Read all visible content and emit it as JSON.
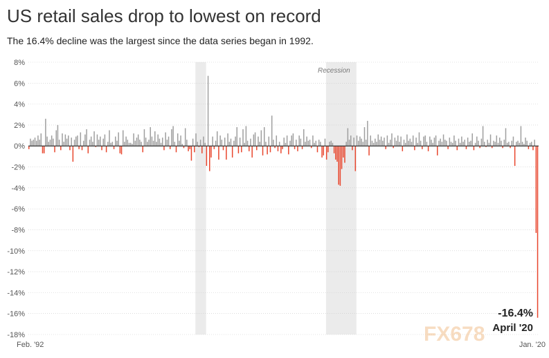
{
  "title": "US retail sales drop to lowest on record",
  "subtitle": "The 16.4% decline was the largest since the data series began in 1992.",
  "watermark": "FX678",
  "colors": {
    "positive": "#9e9e9e",
    "negative": "#e8452c",
    "recession": "#ebebeb",
    "axis": "#333333"
  },
  "chart_data": {
    "type": "bar",
    "title": "US retail sales drop to lowest on record",
    "subtitle": "The 16.4% decline was the largest since the data series began in 1992.",
    "xlabel": "",
    "ylabel": "",
    "ylim": [
      -18,
      8
    ],
    "yticks": [
      8,
      6,
      4,
      2,
      0,
      -2,
      -4,
      -6,
      -8,
      -10,
      -12,
      -14,
      -16,
      -18
    ],
    "ytick_labels": [
      "8%",
      "6%",
      "4%",
      "2%",
      "0%",
      "-2%",
      "-4%",
      "-6%",
      "-8%",
      "-10%",
      "-12%",
      "-14%",
      "-16%",
      "-18%"
    ],
    "x_start_label": "Feb. '92",
    "x_end_label": "Jan. '20",
    "recession_label": "Recession",
    "recessions": [
      [
        110,
        117
      ],
      [
        196,
        216
      ]
    ],
    "annotation": {
      "value": "-16.4%",
      "date": "April '20"
    },
    "grid": true,
    "values": [
      -0.3,
      0.7,
      0.5,
      0.6,
      0.8,
      0.5,
      1.0,
      0.6,
      1.2,
      -0.7,
      -0.7,
      2.6,
      0.9,
      0.4,
      0.6,
      1.0,
      0.7,
      -0.6,
      1.5,
      2.0,
      0.6,
      -0.4,
      1.2,
      0.4,
      1.1,
      0.7,
      1.0,
      -0.4,
      0.8,
      -1.5,
      0.6,
      0.9,
      1.0,
      -0.3,
      1.3,
      -0.4,
      0.5,
      1.1,
      1.6,
      -0.7,
      0.6,
      0.9,
      0.4,
      1.4,
      -0.1,
      1.1,
      0.6,
      0.9,
      -0.4,
      0.7,
      1.1,
      -0.6,
      0.4,
      1.5,
      0.3,
      0.4,
      -0.3,
      0.9,
      0.5,
      1.3,
      -0.7,
      -0.8,
      1.5,
      0.4,
      0.9,
      0.6,
      0.3,
      0.3,
      0.2,
      1.2,
      0.5,
      0.8,
      1.1,
      0.6,
      0.4,
      -0.6,
      1.6,
      0.8,
      0.4,
      0.6,
      1.8,
      0.9,
      0.5,
      1.4,
      0.4,
      1.1,
      0.7,
      0.3,
      0.8,
      -0.4,
      1.3,
      0.6,
      0.9,
      -0.3,
      1.6,
      1.9,
      0.4,
      -0.6,
      1.2,
      0.5,
      1.0,
      0.2,
      -0.2,
      1.7,
      0.6,
      -0.5,
      -0.3,
      -1.4,
      0.7,
      -0.6,
      1.2,
      0.4,
      -0.1,
      0.6,
      -0.7,
      0.9,
      0.3,
      -1.9,
      6.7,
      -2.4,
      -1.1,
      0.9,
      -0.3,
      0.5,
      1.4,
      -1.3,
      1.0,
      0.6,
      -0.4,
      0.8,
      -1.3,
      1.2,
      0.4,
      0.7,
      -1.1,
      0.5,
      0.9,
      1.8,
      -0.7,
      0.8,
      -0.6,
      1.6,
      0.3,
      1.9,
      0.5,
      -0.5,
      0.7,
      -1.1,
      1.1,
      1.3,
      -0.4,
      0.9,
      0.4,
      1.5,
      -0.9,
      1.8,
      0.4,
      -0.8,
      0.9,
      -0.6,
      2.9,
      0.6,
      -0.2,
      1.0,
      -0.5,
      0.4,
      -0.7,
      -0.3,
      0.8,
      0.3,
      1.0,
      -0.8,
      0.5,
      1.0,
      1.2,
      -0.3,
      0.6,
      -0.5,
      1.0,
      0.7,
      -0.3,
      1.6,
      0.4,
      0.9,
      0.5,
      0.6,
      -0.2,
      1.0,
      0.3,
      0.5,
      -0.6,
      0.6,
      0.4,
      -1.1,
      -0.9,
      0.7,
      -1.3,
      -0.6,
      0.4,
      0.5,
      0.3,
      -0.7,
      -1.3,
      -1.5,
      -3.7,
      -3.8,
      -2.2,
      -1.1,
      -1.6,
      0.4,
      1.7,
      0.6,
      1.0,
      -0.4,
      0.8,
      -2.4,
      1.0,
      0.5,
      0.9,
      0.7,
      0.4,
      1.8,
      0.6,
      2.4,
      -0.9,
      1.0,
      0.5,
      0.3,
      0.7,
      0.4,
      1.1,
      0.6,
      0.9,
      0.5,
      0.8,
      -0.3,
      1.0,
      0.3,
      0.6,
      1.2,
      -0.2,
      0.8,
      0.5,
      1.0,
      0.4,
      0.9,
      -0.5,
      0.6,
      0.3,
      1.1,
      0.5,
      0.7,
      0.4,
      1.0,
      -0.4,
      0.8,
      0.3,
      1.3,
      0.5,
      -0.3,
      0.9,
      1.0,
      0.4,
      -0.5,
      0.9,
      0.6,
      0.3,
      0.8,
      1.0,
      -0.9,
      0.5,
      0.7,
      0.4,
      1.1,
      0.6,
      0.5,
      -0.3,
      0.8,
      0.4,
      0.3,
      1.0,
      0.5,
      -0.4,
      0.7,
      0.3,
      0.9,
      0.4,
      0.6,
      -0.3,
      0.8,
      0.4,
      0.5,
      1.2,
      -0.4,
      0.3,
      0.9,
      0.5,
      -0.2,
      0.7,
      1.9,
      0.4,
      -0.1,
      0.6,
      0.3,
      1.1,
      -0.2,
      0.5,
      0.4,
      1.0,
      0.3,
      0.8,
      0.5,
      -0.2,
      0.6,
      1.7,
      0.3,
      0.4,
      -0.2,
      0.5,
      0.9,
      -1.9,
      0.4,
      0.5,
      0.3,
      1.9,
      0.4,
      0.2,
      0.8,
      0.5,
      -0.3,
      0.3,
      0.4,
      -0.4,
      0.6,
      -8.3,
      -16.4
    ]
  }
}
